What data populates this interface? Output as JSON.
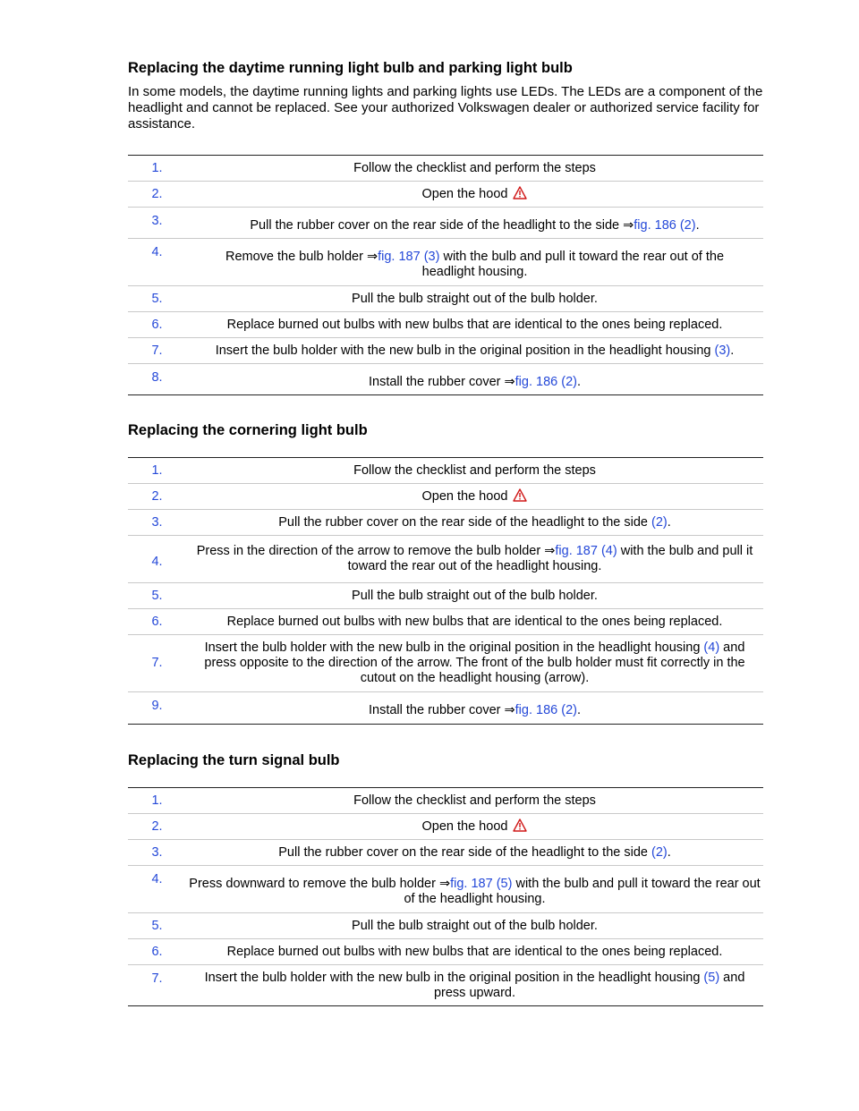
{
  "section1": {
    "heading": "Replacing the daytime running light bulb and parking light bulb",
    "intro": "In some models, the daytime running lights and parking lights use LEDs. The LEDs are a component of the headlight and cannot be replaced. See your authorized Volkswagen dealer or authorized service facility for assistance.",
    "steps": [
      {
        "num": "1.",
        "text": "Follow the checklist and perform the steps"
      },
      {
        "num": "2.",
        "text": "Open the hood "
      },
      {
        "num": "3.",
        "pre": "Pull the rubber cover on the rear side of the headlight to the side ⇒",
        "link": "fig. 186 (2)",
        "post": "."
      },
      {
        "num": "4.",
        "pre": "Remove the bulb holder ⇒",
        "link": "fig. 187 (3)",
        "post": " with the bulb and pull it toward the rear out of the headlight housing."
      },
      {
        "num": "5.",
        "text": "Pull the bulb straight out of the bulb holder."
      },
      {
        "num": "6.",
        "text": "Replace burned out bulbs with new bulbs that are identical to the ones being replaced."
      },
      {
        "num": "7.",
        "pre": "Insert the bulb holder with the new bulb in the original position in the headlight housing ",
        "link": "(3)",
        "post": "."
      },
      {
        "num": "8.",
        "pre": "Install the rubber cover ⇒",
        "link": "fig. 186 (2)",
        "post": "."
      }
    ]
  },
  "section2": {
    "heading": "Replacing the cornering light bulb",
    "steps": [
      {
        "num": "1.",
        "text": "Follow the checklist and perform the steps"
      },
      {
        "num": "2.",
        "text": "Open the hood "
      },
      {
        "num": "3.",
        "pre": "Pull the rubber cover on the rear side of the headlight to the side ",
        "link": "(2)",
        "post": "."
      },
      {
        "num": "4.",
        "pre": "Press in the direction of the arrow to remove the bulb holder ⇒",
        "link": "fig. 187 (4)",
        "post": " with the bulb and pull it toward the rear out of the headlight housing."
      },
      {
        "num": "5.",
        "text": "Pull the bulb straight out of the bulb holder."
      },
      {
        "num": "6.",
        "text": "Replace burned out bulbs with new bulbs that are identical to the ones being replaced."
      },
      {
        "num": "7.",
        "pre": "Insert the bulb holder with the new bulb in the original position in the headlight housing ",
        "link": "(4)",
        "post": " and press opposite to the direction of the arrow. The front of the bulb holder must fit correctly in the cutout on the headlight housing (arrow)."
      },
      {
        "num": "9.",
        "pre": "Install the rubber cover ⇒",
        "link": "fig. 186 (2)",
        "post": "."
      }
    ]
  },
  "section3": {
    "heading": "Replacing the turn signal bulb",
    "steps": [
      {
        "num": "1.",
        "text": "Follow the checklist and perform the steps"
      },
      {
        "num": "2.",
        "text": "Open the hood "
      },
      {
        "num": "3.",
        "pre": "Pull the rubber cover on the rear side of the headlight to the side ",
        "link": "(2)",
        "post": "."
      },
      {
        "num": "4.",
        "pre": "Press downward to remove the bulb holder ⇒",
        "link": "fig. 187 (5)",
        "post": " with the bulb and pull it toward the rear out of the headlight housing."
      },
      {
        "num": "5.",
        "text": "Pull the bulb straight out of the bulb holder."
      },
      {
        "num": "6.",
        "text": "Replace burned out bulbs with new bulbs that are identical to the ones being replaced."
      },
      {
        "num": "7.",
        "pre": "Insert the bulb holder with the new bulb in the original position in the headlight housing ",
        "link": "(5)",
        "post": " and press upward."
      }
    ]
  },
  "icons": {
    "warning": "warning-triangle-icon"
  },
  "colors": {
    "link": "#2448d8",
    "warning": "#d01818"
  }
}
